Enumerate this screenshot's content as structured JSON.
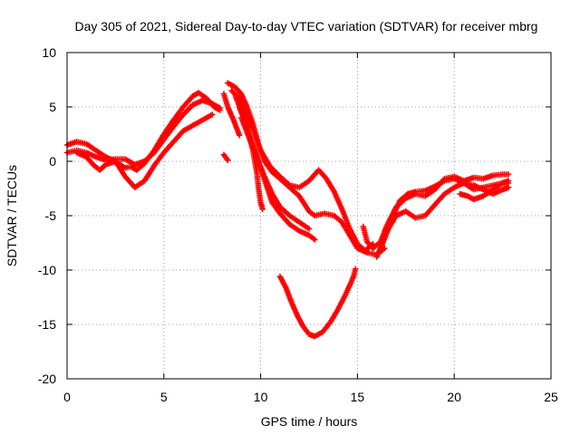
{
  "chart_data": {
    "type": "scatter",
    "title": "Day 305 of 2021, Sidereal Day-to-day VTEC variation (SDTVAR) for receiver mbrg",
    "xlabel": "GPS time / hours",
    "ylabel": "SDTVAR / TECUs",
    "xlim": [
      0,
      25
    ],
    "ylim": [
      -20,
      10
    ],
    "xticks": [
      0,
      5,
      10,
      15,
      20,
      25
    ],
    "yticks": [
      -20,
      -15,
      -10,
      -5,
      0,
      5,
      10
    ],
    "xtick_labels": [
      "0",
      "5",
      "10",
      "15",
      "20",
      "25"
    ],
    "ytick_labels": [
      "-20",
      "-15",
      "-10",
      "-5",
      "0",
      "5",
      "10"
    ],
    "grid": true,
    "marker": "plus",
    "color": "#ff0000",
    "series": [
      {
        "name": "track-1",
        "points": [
          [
            0.0,
            1.5
          ],
          [
            0.5,
            1.8
          ],
          [
            1.0,
            1.6
          ],
          [
            1.5,
            1.0
          ],
          [
            2.0,
            0.4
          ],
          [
            2.5,
            0.0
          ],
          [
            3.0,
            -0.6
          ],
          [
            3.3,
            -0.5
          ],
          [
            3.6,
            -0.8
          ],
          [
            4.0,
            -0.2
          ],
          [
            4.5,
            1.0
          ],
          [
            5.0,
            2.5
          ],
          [
            5.5,
            3.8
          ],
          [
            6.0,
            5.0
          ],
          [
            6.5,
            6.0
          ],
          [
            6.8,
            6.3
          ],
          [
            7.2,
            5.8
          ],
          [
            7.6,
            5.0
          ],
          [
            7.9,
            4.7
          ]
        ]
      },
      {
        "name": "track-2",
        "points": [
          [
            0.0,
            0.8
          ],
          [
            0.5,
            1.0
          ],
          [
            1.0,
            0.8
          ],
          [
            1.5,
            0.4
          ],
          [
            2.0,
            0.1
          ],
          [
            2.5,
            0.2
          ],
          [
            3.0,
            0.2
          ],
          [
            3.5,
            -0.3
          ],
          [
            4.0,
            0.0
          ],
          [
            4.5,
            0.8
          ],
          [
            5.0,
            2.0
          ],
          [
            5.5,
            3.2
          ],
          [
            6.0,
            4.3
          ],
          [
            6.5,
            5.2
          ],
          [
            7.0,
            5.6
          ],
          [
            7.5,
            5.3
          ],
          [
            7.9,
            4.9
          ]
        ]
      },
      {
        "name": "track-3",
        "points": [
          [
            0.5,
            0.8
          ],
          [
            1.0,
            0.4
          ],
          [
            1.4,
            -0.4
          ],
          [
            1.7,
            -0.8
          ],
          [
            2.0,
            -0.3
          ],
          [
            2.5,
            0.0
          ],
          [
            3.0,
            -1.4
          ],
          [
            3.5,
            -2.4
          ],
          [
            4.0,
            -1.8
          ],
          [
            4.5,
            -0.4
          ],
          [
            5.0,
            0.8
          ],
          [
            5.5,
            1.8
          ],
          [
            6.0,
            2.8
          ],
          [
            6.5,
            3.3
          ],
          [
            7.0,
            3.8
          ],
          [
            7.5,
            4.3
          ]
        ]
      },
      {
        "name": "track-4",
        "points": [
          [
            8.3,
            7.2
          ],
          [
            8.7,
            6.8
          ],
          [
            9.0,
            6.2
          ],
          [
            9.3,
            5.0
          ],
          [
            9.6,
            3.5
          ],
          [
            9.9,
            1.5
          ],
          [
            10.2,
            0.0
          ],
          [
            10.6,
            -1.0
          ],
          [
            11.0,
            -1.6
          ],
          [
            11.5,
            -2.4
          ],
          [
            12.0,
            -3.2
          ],
          [
            12.5,
            -4.6
          ],
          [
            12.8,
            -5.0
          ],
          [
            13.3,
            -4.8
          ],
          [
            13.8,
            -5.0
          ],
          [
            14.2,
            -5.6
          ],
          [
            14.6,
            -6.8
          ],
          [
            15.0,
            -8.0
          ],
          [
            15.5,
            -8.4
          ],
          [
            16.0,
            -8.6
          ],
          [
            16.4,
            -8.0
          ]
        ]
      },
      {
        "name": "track-5",
        "points": [
          [
            8.5,
            6.5
          ],
          [
            8.9,
            5.8
          ],
          [
            9.2,
            4.5
          ],
          [
            9.6,
            3.0
          ],
          [
            10.0,
            1.0
          ],
          [
            10.5,
            -0.5
          ],
          [
            11.0,
            -1.4
          ],
          [
            11.5,
            -2.2
          ],
          [
            12.0,
            -2.4
          ],
          [
            12.5,
            -1.8
          ],
          [
            13.0,
            -0.8
          ],
          [
            13.4,
            -1.6
          ],
          [
            13.8,
            -2.8
          ],
          [
            14.2,
            -4.4
          ],
          [
            14.6,
            -6.2
          ],
          [
            15.0,
            -7.6
          ],
          [
            15.4,
            -8.2
          ],
          [
            15.8,
            -7.6
          ]
        ]
      },
      {
        "name": "track-6",
        "points": [
          [
            8.7,
            6.0
          ],
          [
            9.0,
            4.6
          ],
          [
            9.3,
            3.0
          ],
          [
            9.6,
            1.0
          ],
          [
            9.8,
            -1.0
          ],
          [
            9.9,
            -2.6
          ],
          [
            10.0,
            -3.8
          ],
          [
            10.1,
            -4.4
          ]
        ]
      },
      {
        "name": "track-7",
        "points": [
          [
            8.9,
            5.0
          ],
          [
            9.2,
            3.6
          ],
          [
            9.6,
            1.5
          ],
          [
            10.0,
            -0.6
          ],
          [
            10.3,
            -2.2
          ],
          [
            10.6,
            -3.8
          ],
          [
            11.0,
            -4.8
          ],
          [
            11.5,
            -5.8
          ],
          [
            12.0,
            -6.4
          ],
          [
            12.5,
            -6.8
          ],
          [
            12.8,
            -7.2
          ]
        ]
      },
      {
        "name": "track-8",
        "points": [
          [
            9.0,
            4.0
          ],
          [
            9.4,
            2.2
          ],
          [
            9.8,
            0.4
          ],
          [
            10.2,
            -1.4
          ],
          [
            10.6,
            -3.0
          ],
          [
            11.0,
            -4.2
          ],
          [
            11.5,
            -5.0
          ],
          [
            12.0,
            -5.6
          ],
          [
            12.5,
            -6.2
          ]
        ]
      },
      {
        "name": "track-9",
        "points": [
          [
            8.1,
            6.2
          ],
          [
            8.3,
            5.0
          ],
          [
            8.6,
            3.8
          ],
          [
            8.9,
            2.4
          ]
        ]
      },
      {
        "name": "track-10",
        "points": [
          [
            8.1,
            0.6
          ],
          [
            8.3,
            0.1
          ]
        ]
      },
      {
        "name": "track-11",
        "points": [
          [
            11.0,
            -10.6
          ],
          [
            11.3,
            -11.6
          ],
          [
            11.6,
            -13.0
          ],
          [
            11.9,
            -14.2
          ],
          [
            12.2,
            -15.2
          ],
          [
            12.5,
            -15.9
          ],
          [
            12.8,
            -16.1
          ],
          [
            13.2,
            -15.7
          ],
          [
            13.6,
            -14.8
          ],
          [
            14.0,
            -13.6
          ],
          [
            14.4,
            -12.2
          ],
          [
            14.8,
            -10.6
          ],
          [
            14.9,
            -9.9
          ]
        ]
      },
      {
        "name": "track-12",
        "points": [
          [
            15.3,
            -6.0
          ],
          [
            15.5,
            -7.4
          ],
          [
            15.8,
            -8.0
          ],
          [
            16.2,
            -7.4
          ],
          [
            16.5,
            -6.0
          ],
          [
            17.0,
            -4.2
          ],
          [
            17.5,
            -3.4
          ],
          [
            18.0,
            -3.0
          ],
          [
            18.5,
            -3.2
          ],
          [
            19.0,
            -2.6
          ],
          [
            19.5,
            -1.6
          ],
          [
            20.0,
            -1.4
          ],
          [
            20.5,
            -1.8
          ],
          [
            21.0,
            -1.5
          ],
          [
            21.5,
            -1.6
          ],
          [
            22.0,
            -1.3
          ],
          [
            22.5,
            -1.2
          ],
          [
            22.8,
            -1.2
          ]
        ]
      },
      {
        "name": "track-13",
        "points": [
          [
            16.0,
            -8.8
          ],
          [
            16.4,
            -7.0
          ],
          [
            16.8,
            -5.2
          ],
          [
            17.2,
            -3.6
          ],
          [
            17.6,
            -3.0
          ],
          [
            18.0,
            -2.8
          ],
          [
            18.5,
            -2.7
          ],
          [
            19.0,
            -2.3
          ],
          [
            19.5,
            -1.8
          ],
          [
            20.0,
            -1.6
          ],
          [
            20.5,
            -2.0
          ],
          [
            21.0,
            -2.6
          ],
          [
            21.5,
            -2.4
          ],
          [
            22.0,
            -2.2
          ],
          [
            22.5,
            -2.0
          ],
          [
            22.8,
            -2.0
          ]
        ]
      },
      {
        "name": "track-14",
        "points": [
          [
            16.2,
            -8.0
          ],
          [
            16.6,
            -6.2
          ],
          [
            17.0,
            -5.0
          ],
          [
            17.5,
            -4.6
          ],
          [
            18.0,
            -5.2
          ],
          [
            18.5,
            -5.0
          ],
          [
            19.0,
            -4.0
          ],
          [
            19.5,
            -3.0
          ],
          [
            20.0,
            -2.4
          ],
          [
            20.5,
            -2.0
          ],
          [
            21.0,
            -2.2
          ],
          [
            21.5,
            -2.6
          ],
          [
            22.0,
            -3.0
          ],
          [
            22.5,
            -2.6
          ],
          [
            22.8,
            -2.4
          ]
        ]
      },
      {
        "name": "track-15",
        "points": [
          [
            20.3,
            -3.0
          ],
          [
            20.7,
            -3.2
          ],
          [
            21.0,
            -3.5
          ],
          [
            21.5,
            -3.2
          ],
          [
            22.0,
            -2.6
          ],
          [
            22.5,
            -2.0
          ],
          [
            22.8,
            -1.8
          ]
        ]
      }
    ]
  }
}
